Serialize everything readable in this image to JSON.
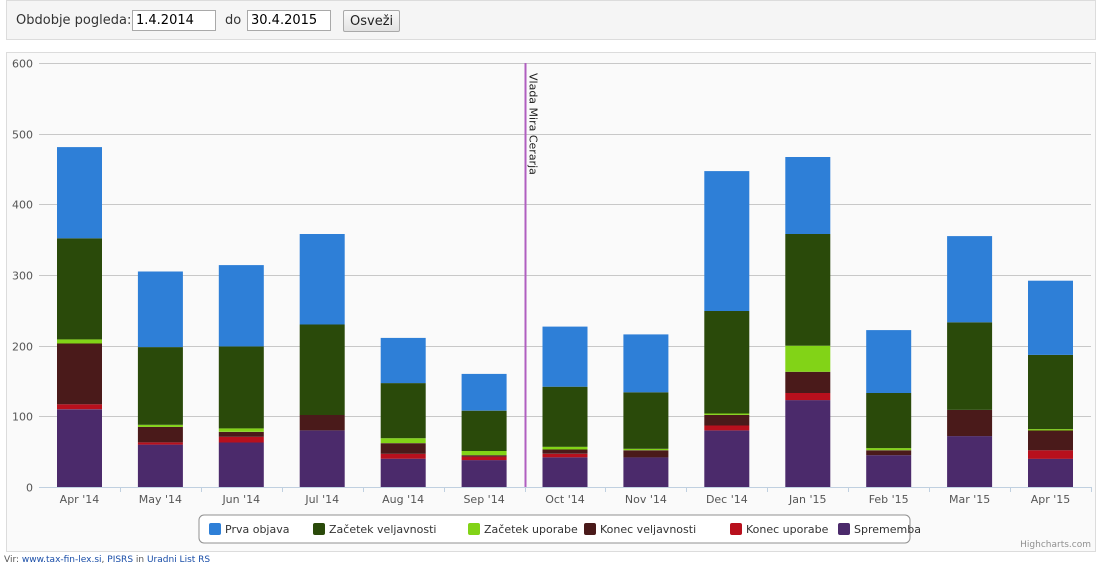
{
  "toolbar": {
    "period_label": "Obdobje pogleda:",
    "from_value": "1.4.2014",
    "to_label": "do",
    "to_value": "30.4.2015",
    "refresh_label": "Osveži"
  },
  "chart_data": {
    "type": "bar",
    "stacked": true,
    "categories": [
      "Apr '14",
      "May '14",
      "Jun '14",
      "Jul '14",
      "Aug '14",
      "Sep '14",
      "Oct '14",
      "Nov '14",
      "Dec '14",
      "Jan '15",
      "Feb '15",
      "Mar '15",
      "Apr '15"
    ],
    "ylim": [
      0,
      600
    ],
    "yticks": [
      0,
      100,
      200,
      300,
      400,
      500,
      600
    ],
    "grid": true,
    "legend_position": "bottom-center",
    "series": [
      {
        "name": "Sprememba",
        "color": "#4b2a6b",
        "values": [
          110,
          60,
          63,
          80,
          40,
          38,
          42,
          42,
          80,
          123,
          45,
          72,
          40
        ]
      },
      {
        "name": "Konec uporabe",
        "color": "#b8101d",
        "values": [
          7,
          3,
          8,
          0,
          7,
          5,
          5,
          0,
          7,
          10,
          0,
          0,
          12
        ]
      },
      {
        "name": "Konec veljavnosti",
        "color": "#4a1a1a",
        "values": [
          86,
          22,
          7,
          22,
          15,
          2,
          6,
          10,
          15,
          30,
          7,
          37,
          28
        ]
      },
      {
        "name": "Začetek uporabe",
        "color": "#82d317",
        "values": [
          6,
          3,
          5,
          0,
          7,
          6,
          4,
          2,
          2,
          37,
          3,
          0,
          2
        ]
      },
      {
        "name": "Začetek veljavnosti",
        "color": "#2a4a0a",
        "values": [
          143,
          110,
          116,
          128,
          78,
          57,
          85,
          80,
          145,
          158,
          78,
          124,
          105
        ]
      },
      {
        "name": "Prva objava",
        "color": "#2e7fd7",
        "values": [
          129,
          107,
          115,
          128,
          64,
          52,
          85,
          82,
          198,
          109,
          89,
          122,
          105
        ]
      }
    ],
    "legend_order": [
      "Prva objava",
      "Začetek veljavnosti",
      "Začetek uporabe",
      "Konec veljavnosti",
      "Konec uporabe",
      "Sprememba"
    ],
    "plot_line": {
      "between": [
        "Sep '14",
        "Oct '14"
      ],
      "label": "Vlada Mira Cerarja",
      "color": "#b05fc0"
    },
    "credits": "Highcharts.com"
  },
  "source": {
    "prefix": "Vir: ",
    "link1": "www.tax-fin-lex.si",
    "sep1": ", ",
    "link2": "PISRS",
    "sep2": " in ",
    "link3": "Uradni List RS"
  }
}
